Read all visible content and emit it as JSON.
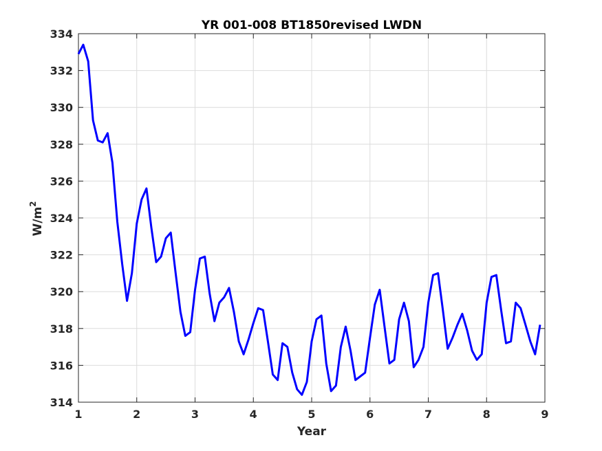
{
  "chart_data": {
    "type": "line",
    "title": "YR 001-008 BT1850revised LWDN",
    "xlabel": "Year",
    "ylabel": "W/m",
    "ylabel_superscript": "2",
    "xlim": [
      1,
      9
    ],
    "ylim": [
      314,
      334
    ],
    "xticks": [
      1,
      2,
      3,
      4,
      5,
      6,
      7,
      8,
      9
    ],
    "yticks": [
      314,
      316,
      318,
      320,
      322,
      324,
      326,
      328,
      330,
      332,
      334
    ],
    "grid": true,
    "line_color": "#0000ff",
    "series": [
      {
        "x": [
          1.0,
          1.083,
          1.167,
          1.25,
          1.333,
          1.417,
          1.5,
          1.583,
          1.667,
          1.75,
          1.833,
          1.917,
          2.0,
          2.083,
          2.167,
          2.25,
          2.333,
          2.417,
          2.5,
          2.583,
          2.667,
          2.75,
          2.833,
          2.917,
          3.0,
          3.083,
          3.167,
          3.25,
          3.333,
          3.417,
          3.5,
          3.583,
          3.667,
          3.75,
          3.833,
          3.917,
          4.0,
          4.083,
          4.167,
          4.25,
          4.333,
          4.417,
          4.5,
          4.583,
          4.667,
          4.75,
          4.833,
          4.917,
          5.0,
          5.083,
          5.167,
          5.25,
          5.333,
          5.417,
          5.5,
          5.583,
          5.667,
          5.75,
          5.833,
          5.917,
          6.0,
          6.083,
          6.167,
          6.25,
          6.333,
          6.417,
          6.5,
          6.583,
          6.667,
          6.75,
          6.833,
          6.917,
          7.0,
          7.083,
          7.167,
          7.25,
          7.333,
          7.417,
          7.5,
          7.583,
          7.667,
          7.75,
          7.833,
          7.917,
          8.0,
          8.083,
          8.167,
          8.25,
          8.333,
          8.417,
          8.5,
          8.583,
          8.667,
          8.75,
          8.833,
          8.917
        ],
        "values": [
          332.9,
          333.4,
          332.5,
          329.3,
          328.2,
          328.1,
          328.6,
          327.0,
          323.8,
          321.5,
          319.5,
          321.0,
          323.7,
          325.0,
          325.6,
          323.5,
          321.6,
          321.9,
          322.9,
          323.2,
          321.0,
          318.9,
          317.6,
          317.8,
          320.1,
          321.8,
          321.9,
          319.9,
          318.4,
          319.4,
          319.7,
          320.2,
          318.9,
          317.3,
          316.6,
          317.4,
          318.3,
          319.1,
          319.0,
          317.3,
          315.5,
          315.2,
          317.2,
          317.0,
          315.6,
          314.7,
          314.4,
          315.1,
          317.3,
          318.5,
          318.7,
          316.1,
          314.6,
          314.9,
          317.0,
          318.1,
          316.8,
          315.2,
          315.4,
          315.6,
          317.5,
          319.3,
          320.1,
          318.1,
          316.1,
          316.3,
          318.5,
          319.4,
          318.4,
          315.9,
          316.3,
          317.0,
          319.4,
          320.9,
          321.0,
          319.0,
          316.9,
          317.5,
          318.2,
          318.8,
          317.9,
          316.8,
          316.3,
          316.6,
          319.4,
          320.8,
          320.9,
          319.0,
          317.2,
          317.3,
          319.4,
          319.1,
          318.2,
          317.3,
          316.6,
          318.2
        ]
      }
    ]
  }
}
